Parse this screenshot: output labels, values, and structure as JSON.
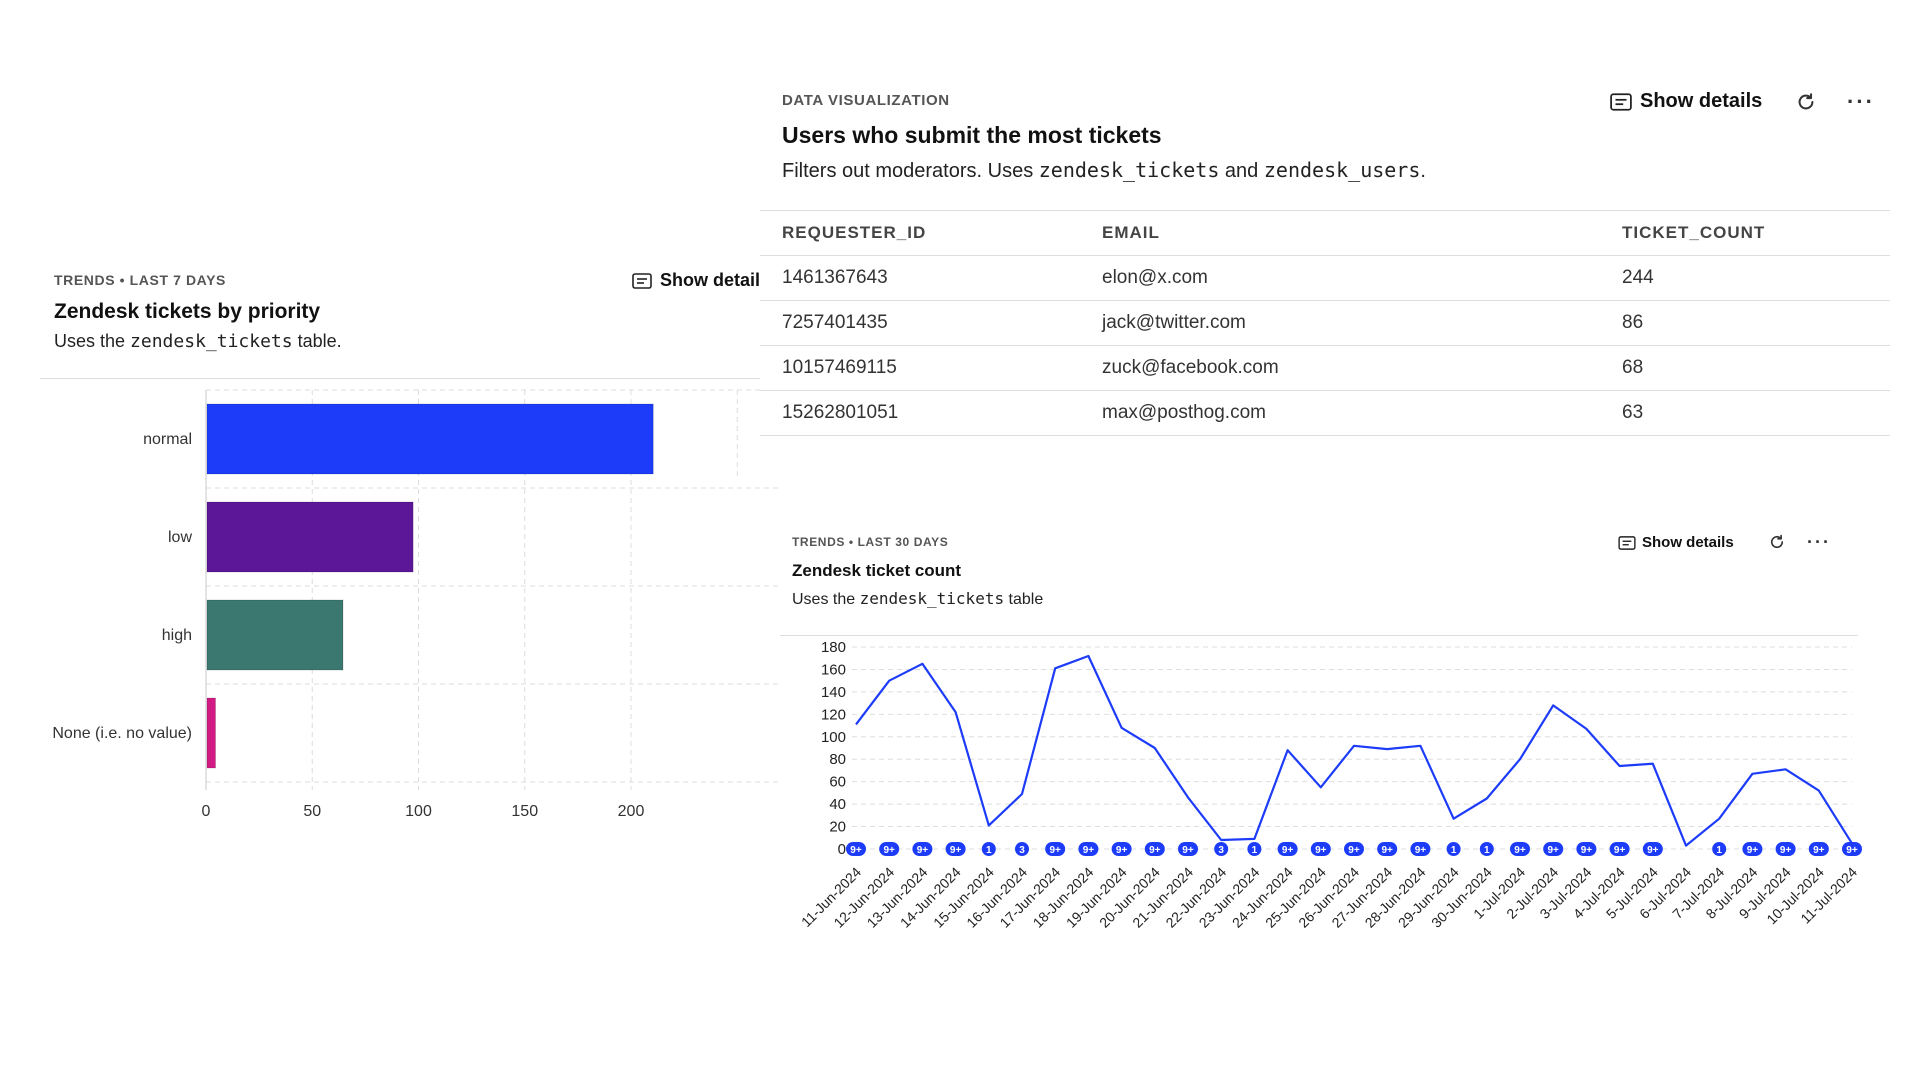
{
  "table_card": {
    "eyebrow": "DATA VISUALIZATION",
    "title": "Users who submit the most tickets",
    "desc_parts": [
      "Filters out moderators. Uses ",
      "zendesk_tickets",
      " and ",
      "zendesk_users",
      "."
    ],
    "show_details": "Show details",
    "columns": [
      "REQUESTER_ID",
      "EMAIL",
      "TICKET_COUNT"
    ],
    "rows": [
      [
        "1461367643",
        "elon@x.com",
        "244"
      ],
      [
        "7257401435",
        "jack@twitter.com",
        "86"
      ],
      [
        "10157469115",
        "zuck@facebook.com",
        "68"
      ],
      [
        "15262801051",
        "max@posthog.com",
        "63"
      ]
    ]
  },
  "priority_card": {
    "eyebrow": "TRENDS • LAST 7 DAYS",
    "title": "Zendesk tickets by priority",
    "desc_parts": [
      "Uses the ",
      "zendesk_tickets",
      " table."
    ],
    "show_details": "Show details"
  },
  "count_card": {
    "eyebrow": "TRENDS • LAST 30 DAYS",
    "title": "Zendesk ticket count",
    "desc_parts": [
      "Uses the ",
      "zendesk_tickets",
      " table"
    ],
    "show_details": "Show details"
  },
  "chart_data": [
    {
      "type": "bar",
      "orientation": "horizontal",
      "title": "Zendesk tickets by priority",
      "categories": [
        "normal",
        "low",
        "high",
        "None (i.e. no value)"
      ],
      "values": [
        210,
        97,
        64,
        4
      ],
      "colors": [
        "#1d3cfa",
        "#5b1797",
        "#3a7870",
        "#d21a84"
      ],
      "xlim": [
        0,
        200
      ],
      "xticks": [
        0,
        50,
        100,
        150,
        200
      ],
      "grid": true
    },
    {
      "type": "line",
      "title": "Zendesk ticket count",
      "color": "#1d3cfa",
      "x": [
        "11-Jun-2024",
        "12-Jun-2024",
        "13-Jun-2024",
        "14-Jun-2024",
        "15-Jun-2024",
        "16-Jun-2024",
        "17-Jun-2024",
        "18-Jun-2024",
        "19-Jun-2024",
        "20-Jun-2024",
        "21-Jun-2024",
        "22-Jun-2024",
        "23-Jun-2024",
        "24-Jun-2024",
        "25-Jun-2024",
        "26-Jun-2024",
        "27-Jun-2024",
        "28-Jun-2024",
        "29-Jun-2024",
        "30-Jun-2024",
        "1-Jul-2024",
        "2-Jul-2024",
        "3-Jul-2024",
        "4-Jul-2024",
        "5-Jul-2024",
        "6-Jul-2024",
        "7-Jul-2024",
        "8-Jul-2024",
        "9-Jul-2024",
        "10-Jul-2024",
        "11-Jul-2024"
      ],
      "values": [
        111,
        150,
        165,
        122,
        21,
        49,
        161,
        172,
        108,
        90,
        46,
        8,
        9,
        88,
        55,
        92,
        89,
        92,
        27,
        45,
        80,
        128,
        107,
        74,
        76,
        3,
        27,
        67,
        71,
        52,
        5
      ],
      "badges": [
        "9+",
        "9+",
        "9+",
        "9+",
        "1",
        "3",
        "9+",
        "9+",
        "9+",
        "9+",
        "9+",
        "3",
        "1",
        "9+",
        "9+",
        "9+",
        "9+",
        "9+",
        "1",
        "1",
        "9+",
        "9+",
        "9+",
        "9+",
        "9+",
        "",
        "1",
        "9+",
        "9+",
        "9+",
        "9+"
      ],
      "ylim": [
        0,
        180
      ],
      "yticks": [
        0,
        20,
        40,
        60,
        80,
        100,
        120,
        140,
        160,
        180
      ],
      "grid": true
    }
  ]
}
